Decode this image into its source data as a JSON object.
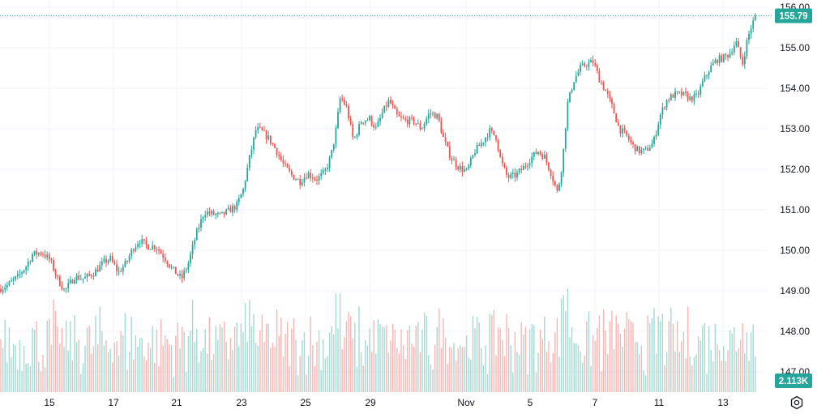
{
  "colors": {
    "up": "#26a69a",
    "down": "#ef5350",
    "up_volume": "#a5d9d3",
    "down_volume": "#f7b6b3",
    "grid": "#f0f3fa",
    "price_line": "#26a69a",
    "price_badge": "#26a69a",
    "volume_badge": "#26a69a",
    "text": "#131722"
  },
  "price_badge": "155.79",
  "volume_badge": "2.113K",
  "settings_icon": "settings-gear-icon",
  "chart_data": {
    "type": "candlestick",
    "y_axis": {
      "ticks": [
        "156.00",
        "155.00",
        "154.00",
        "153.00",
        "152.00",
        "151.00",
        "150.00",
        "149.00",
        "148.00",
        "147.00"
      ],
      "range": [
        146.8,
        156.1
      ]
    },
    "x_axis": {
      "ticks": [
        "15",
        "17",
        "21",
        "23",
        "25",
        "29",
        "Nov",
        "5",
        "7",
        "11",
        "13"
      ]
    },
    "last_price": 155.79,
    "last_volume": "2.113K",
    "grid": true,
    "price_anchors": [
      [
        0,
        149.05
      ],
      [
        10,
        149.15
      ],
      [
        22,
        149.35
      ],
      [
        32,
        149.6
      ],
      [
        40,
        149.9
      ],
      [
        52,
        149.95
      ],
      [
        62,
        149.75
      ],
      [
        72,
        149.25
      ],
      [
        80,
        149.0
      ],
      [
        92,
        149.35
      ],
      [
        104,
        149.3
      ],
      [
        116,
        149.45
      ],
      [
        128,
        149.7
      ],
      [
        136,
        149.8
      ],
      [
        146,
        149.45
      ],
      [
        156,
        149.7
      ],
      [
        164,
        150.05
      ],
      [
        172,
        150.25
      ],
      [
        182,
        150.1
      ],
      [
        192,
        150.1
      ],
      [
        202,
        149.85
      ],
      [
        212,
        149.55
      ],
      [
        224,
        149.3
      ],
      [
        232,
        149.65
      ],
      [
        242,
        150.4
      ],
      [
        252,
        150.95
      ],
      [
        262,
        150.9
      ],
      [
        272,
        150.85
      ],
      [
        284,
        151.0
      ],
      [
        292,
        151.1
      ],
      [
        300,
        151.5
      ],
      [
        308,
        152.3
      ],
      [
        316,
        153.0
      ],
      [
        322,
        152.95
      ],
      [
        332,
        152.75
      ],
      [
        340,
        152.5
      ],
      [
        350,
        152.1
      ],
      [
        360,
        151.85
      ],
      [
        370,
        151.7
      ],
      [
        380,
        151.9
      ],
      [
        390,
        151.75
      ],
      [
        400,
        151.9
      ],
      [
        408,
        152.3
      ],
      [
        414,
        152.9
      ],
      [
        420,
        153.8
      ],
      [
        428,
        153.5
      ],
      [
        436,
        152.7
      ],
      [
        446,
        153.2
      ],
      [
        456,
        153.25
      ],
      [
        464,
        153.0
      ],
      [
        472,
        153.4
      ],
      [
        480,
        153.7
      ],
      [
        490,
        153.3
      ],
      [
        500,
        153.2
      ],
      [
        510,
        153.2
      ],
      [
        520,
        153.0
      ],
      [
        530,
        153.4
      ],
      [
        540,
        153.3
      ],
      [
        548,
        152.7
      ],
      [
        556,
        152.3
      ],
      [
        566,
        152.05
      ],
      [
        576,
        151.95
      ],
      [
        586,
        152.45
      ],
      [
        596,
        152.7
      ],
      [
        604,
        152.95
      ],
      [
        612,
        152.8
      ],
      [
        618,
        152.2
      ],
      [
        626,
        151.8
      ],
      [
        636,
        151.85
      ],
      [
        646,
        152.05
      ],
      [
        656,
        152.3
      ],
      [
        664,
        152.45
      ],
      [
        672,
        152.3
      ],
      [
        680,
        151.9
      ],
      [
        688,
        151.4
      ],
      [
        694,
        152.2
      ],
      [
        700,
        153.6
      ],
      [
        708,
        154.2
      ],
      [
        716,
        154.5
      ],
      [
        724,
        154.6
      ],
      [
        732,
        154.65
      ],
      [
        740,
        154.2
      ],
      [
        748,
        153.9
      ],
      [
        756,
        153.5
      ],
      [
        764,
        153.0
      ],
      [
        772,
        152.85
      ],
      [
        780,
        152.6
      ],
      [
        788,
        152.45
      ],
      [
        796,
        152.45
      ],
      [
        806,
        152.65
      ],
      [
        814,
        153.3
      ],
      [
        822,
        153.7
      ],
      [
        832,
        153.85
      ],
      [
        842,
        153.85
      ],
      [
        852,
        153.75
      ],
      [
        860,
        153.8
      ],
      [
        868,
        154.2
      ],
      [
        876,
        154.5
      ],
      [
        884,
        154.7
      ],
      [
        892,
        154.75
      ],
      [
        900,
        154.85
      ],
      [
        908,
        155.15
      ],
      [
        916,
        154.6
      ],
      [
        922,
        155.2
      ],
      [
        928,
        155.6
      ],
      [
        934,
        155.79
      ]
    ]
  }
}
